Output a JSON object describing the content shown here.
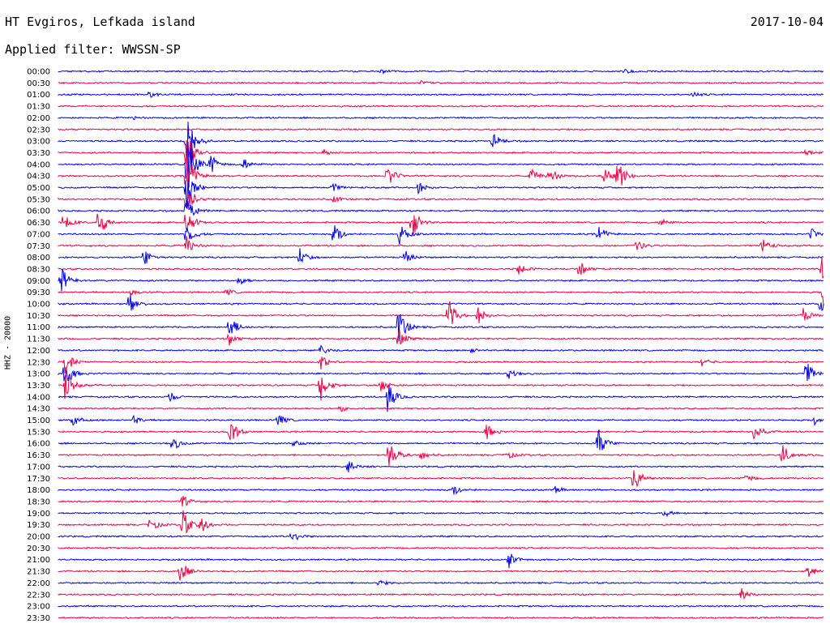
{
  "header": {
    "title": "HT Evgiros, Lefkada island",
    "filter": "Applied filter: WWSSN-SP",
    "date": "2017-10-04"
  },
  "side_label": "HHZ - 20000",
  "chart_data": {
    "type": "helicorder",
    "station": "HT Evgiros, Lefkada island",
    "channel": "HHZ",
    "date": "2017-10-04",
    "filter": "WWSSN-SP",
    "scale": 20000,
    "colors": {
      "even": "#0000ee",
      "odd": "#ee0044"
    },
    "rows": [
      {
        "label": "00:00",
        "events": [
          [
            470,
            3
          ],
          [
            770,
            3
          ]
        ]
      },
      {
        "label": "00:30",
        "events": [
          [
            520,
            3
          ]
        ]
      },
      {
        "label": "01:00",
        "events": [
          [
            185,
            4
          ],
          [
            855,
            3
          ]
        ]
      },
      {
        "label": "01:30",
        "events": []
      },
      {
        "label": "02:00",
        "events": [
          [
            165,
            2
          ]
        ]
      },
      {
        "label": "02:30",
        "events": []
      },
      {
        "label": "03:00",
        "events": [
          [
            230,
            50
          ],
          [
            608,
            10
          ]
        ]
      },
      {
        "label": "03:30",
        "events": [
          [
            230,
            40
          ],
          [
            400,
            4
          ],
          [
            995,
            4
          ]
        ]
      },
      {
        "label": "04:00",
        "events": [
          [
            230,
            60
          ],
          [
            260,
            12
          ],
          [
            300,
            8
          ]
        ]
      },
      {
        "label": "04:30",
        "events": [
          [
            230,
            40
          ],
          [
            478,
            14
          ],
          [
            655,
            10
          ],
          [
            678,
            12
          ],
          [
            745,
            10
          ],
          [
            762,
            22
          ]
        ]
      },
      {
        "label": "05:00",
        "events": [
          [
            230,
            30
          ],
          [
            410,
            6
          ],
          [
            515,
            8
          ]
        ]
      },
      {
        "label": "05:30",
        "events": [
          [
            230,
            25
          ],
          [
            410,
            5
          ]
        ]
      },
      {
        "label": "06:00",
        "events": [
          [
            230,
            20
          ]
        ]
      },
      {
        "label": "06:30",
        "events": [
          [
            78,
            14
          ],
          [
            122,
            22
          ],
          [
            230,
            18
          ],
          [
            508,
            22
          ],
          [
            815,
            6
          ]
        ]
      },
      {
        "label": "07:00",
        "events": [
          [
            230,
            16
          ],
          [
            412,
            14
          ],
          [
            493,
            14
          ],
          [
            738,
            12
          ],
          [
            1000,
            8
          ]
        ]
      },
      {
        "label": "07:30",
        "events": [
          [
            230,
            12
          ],
          [
            785,
            8
          ],
          [
            940,
            10
          ]
        ]
      },
      {
        "label": "08:00",
        "events": [
          [
            178,
            12
          ],
          [
            370,
            12
          ],
          [
            500,
            8
          ]
        ]
      },
      {
        "label": "08:30",
        "events": [
          [
            640,
            8
          ],
          [
            715,
            10
          ],
          [
            1014,
            14
          ]
        ]
      },
      {
        "label": "09:00",
        "events": [
          [
            75,
            20
          ],
          [
            295,
            6
          ]
        ]
      },
      {
        "label": "09:30",
        "events": [
          [
            160,
            4
          ],
          [
            280,
            4
          ],
          [
            1016,
            16
          ]
        ]
      },
      {
        "label": "10:00",
        "events": [
          [
            160,
            14
          ],
          [
            1012,
            12
          ]
        ]
      },
      {
        "label": "10:30",
        "events": [
          [
            553,
            22
          ],
          [
            590,
            10
          ],
          [
            990,
            10
          ]
        ]
      },
      {
        "label": "11:00",
        "events": [
          [
            283,
            16
          ],
          [
            492,
            26
          ]
        ]
      },
      {
        "label": "11:30",
        "events": [
          [
            283,
            8
          ],
          [
            492,
            12
          ]
        ]
      },
      {
        "label": "12:00",
        "events": [
          [
            395,
            6
          ],
          [
            580,
            3
          ]
        ]
      },
      {
        "label": "12:30",
        "events": [
          [
            80,
            16
          ],
          [
            395,
            10
          ],
          [
            865,
            6
          ]
        ]
      },
      {
        "label": "13:00",
        "events": [
          [
            80,
            20
          ],
          [
            628,
            6
          ],
          [
            995,
            16
          ]
        ]
      },
      {
        "label": "13:30",
        "events": [
          [
            80,
            22
          ],
          [
            395,
            22
          ],
          [
            470,
            10
          ]
        ]
      },
      {
        "label": "14:00",
        "events": [
          [
            478,
            20
          ],
          [
            210,
            6
          ]
        ]
      },
      {
        "label": "14:30",
        "events": [
          [
            420,
            4
          ]
        ]
      },
      {
        "label": "15:00",
        "events": [
          [
            90,
            8
          ],
          [
            165,
            6
          ],
          [
            343,
            8
          ],
          [
            1005,
            6
          ]
        ]
      },
      {
        "label": "15:30",
        "events": [
          [
            283,
            20
          ],
          [
            600,
            10
          ],
          [
            930,
            14
          ]
        ]
      },
      {
        "label": "16:00",
        "events": [
          [
            213,
            10
          ],
          [
            362,
            6
          ],
          [
            737,
            22
          ]
        ]
      },
      {
        "label": "16:30",
        "events": [
          [
            480,
            22
          ],
          [
            520,
            6
          ],
          [
            625,
            6
          ],
          [
            965,
            14
          ]
        ]
      },
      {
        "label": "17:00",
        "events": [
          [
            430,
            8
          ]
        ]
      },
      {
        "label": "17:30",
        "events": [
          [
            782,
            18
          ],
          [
            920,
            6
          ]
        ]
      },
      {
        "label": "18:00",
        "events": [
          [
            560,
            6
          ],
          [
            685,
            4
          ]
        ]
      },
      {
        "label": "18:30",
        "events": [
          [
            225,
            8
          ]
        ]
      },
      {
        "label": "19:00",
        "events": [
          [
            820,
            4
          ]
        ]
      },
      {
        "label": "19:30",
        "events": [
          [
            185,
            10
          ],
          [
            225,
            20
          ],
          [
            248,
            10
          ]
        ]
      },
      {
        "label": "20:00",
        "events": [
          [
            360,
            10
          ]
        ]
      },
      {
        "label": "20:30",
        "events": []
      },
      {
        "label": "21:00",
        "events": [
          [
            628,
            10
          ]
        ]
      },
      {
        "label": "21:30",
        "events": [
          [
            222,
            16
          ],
          [
            997,
            8
          ]
        ]
      },
      {
        "label": "22:00",
        "events": [
          [
            468,
            4
          ]
        ]
      },
      {
        "label": "22:30",
        "events": [
          [
            915,
            8
          ]
        ]
      },
      {
        "label": "23:00",
        "events": []
      },
      {
        "label": "23:30",
        "events": []
      }
    ]
  }
}
